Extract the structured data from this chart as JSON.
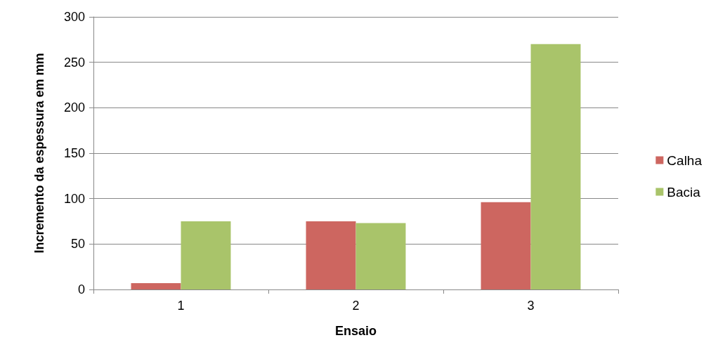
{
  "chart_data": {
    "type": "bar",
    "xlabel": "Ensaio",
    "ylabel": "Incremento da espessura em mm",
    "categories": [
      "1",
      "2",
      "3"
    ],
    "series": [
      {
        "name": "Calha",
        "color": "#cd6660",
        "values": [
          7,
          75,
          96
        ]
      },
      {
        "name": "Bacia",
        "color": "#a9c46a",
        "values": [
          75,
          73,
          270
        ]
      }
    ],
    "ylim": [
      0,
      300
    ],
    "yticks": [
      0,
      50,
      100,
      150,
      200,
      250,
      300
    ],
    "grid": "y",
    "legend": "right"
  }
}
